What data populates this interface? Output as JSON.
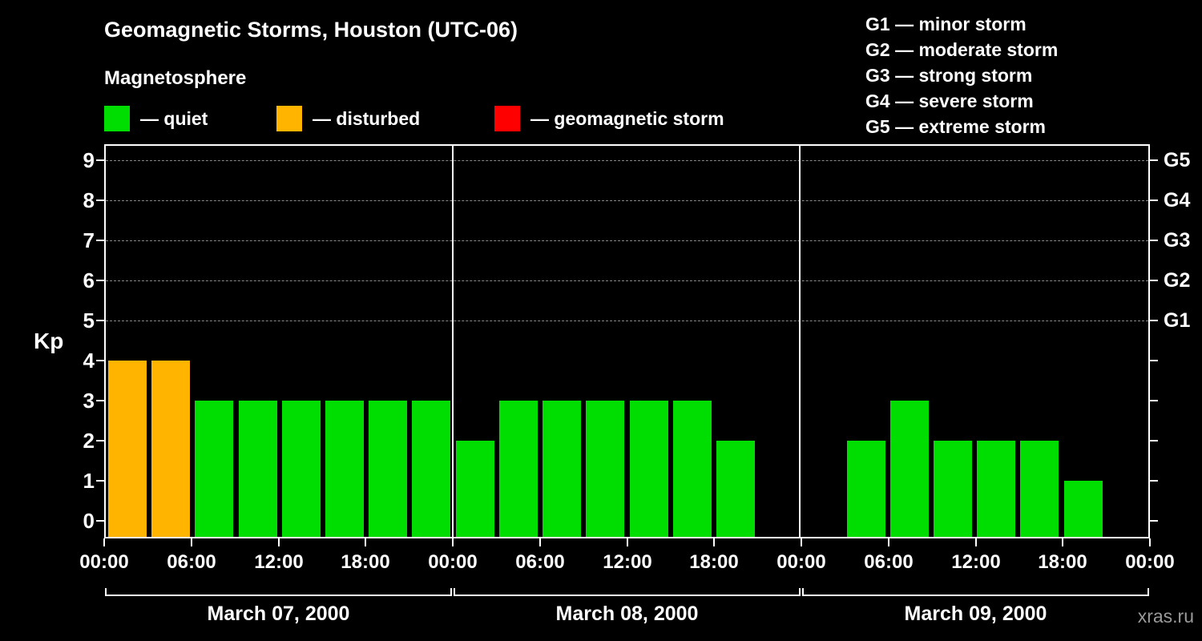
{
  "title": "Geomagnetic Storms, Houston (UTC-06)",
  "legend": {
    "heading": "Magnetosphere",
    "items": [
      {
        "key": "quiet",
        "label": "— quiet",
        "color": "#00dd00"
      },
      {
        "key": "disturbed",
        "label": "— disturbed",
        "color": "#ffb400"
      },
      {
        "key": "storm",
        "label": "— geomagnetic storm",
        "color": "#ff0000"
      }
    ]
  },
  "storm_scale": [
    {
      "code": "G1",
      "label": "G1 — minor storm"
    },
    {
      "code": "G2",
      "label": "G2 — moderate storm"
    },
    {
      "code": "G3",
      "label": "G3 — strong storm"
    },
    {
      "code": "G4",
      "label": "G4 — severe storm"
    },
    {
      "code": "G5",
      "label": "G5 — extreme storm"
    }
  ],
  "watermark": "xras.ru",
  "chart_data": {
    "type": "bar",
    "title": "Geomagnetic Storms, Houston (UTC-06)",
    "ylabel": "Kp",
    "ylim": [
      0,
      9
    ],
    "yticks": [
      0,
      1,
      2,
      3,
      4,
      5,
      6,
      7,
      8,
      9
    ],
    "bar_interval_hours": 3,
    "grid": "dashed horizontal lines at G-storm levels only",
    "legend_position": "top-left",
    "x_tick_labels": [
      "00:00",
      "06:00",
      "12:00",
      "18:00",
      "00:00",
      "06:00",
      "12:00",
      "18:00",
      "00:00",
      "06:00",
      "12:00",
      "18:00",
      "00:00"
    ],
    "gridlines_kp": [
      5,
      6,
      7,
      8,
      9
    ],
    "right_axis": [
      {
        "label": "G1",
        "kp": 5
      },
      {
        "label": "G2",
        "kp": 6
      },
      {
        "label": "G3",
        "kp": 7
      },
      {
        "label": "G4",
        "kp": 8
      },
      {
        "label": "G5",
        "kp": 9
      }
    ],
    "colors": {
      "quiet": "#00dd00",
      "disturbed": "#ffb400",
      "storm": "#ff0000"
    },
    "days": [
      {
        "date": "March 07, 2000",
        "values": [
          4,
          4,
          3,
          3,
          3,
          3,
          3,
          3
        ],
        "levels": [
          "disturbed",
          "disturbed",
          "quiet",
          "quiet",
          "quiet",
          "quiet",
          "quiet",
          "quiet"
        ]
      },
      {
        "date": "March 08, 2000",
        "values": [
          2,
          3,
          3,
          3,
          3,
          3,
          2,
          null
        ],
        "levels": [
          "quiet",
          "quiet",
          "quiet",
          "quiet",
          "quiet",
          "quiet",
          "quiet",
          null
        ]
      },
      {
        "date": "March 09, 2000",
        "values": [
          null,
          2,
          3,
          2,
          2,
          2,
          1,
          null
        ],
        "levels": [
          null,
          "quiet",
          "quiet",
          "quiet",
          "quiet",
          "quiet",
          "quiet",
          null
        ]
      }
    ]
  }
}
